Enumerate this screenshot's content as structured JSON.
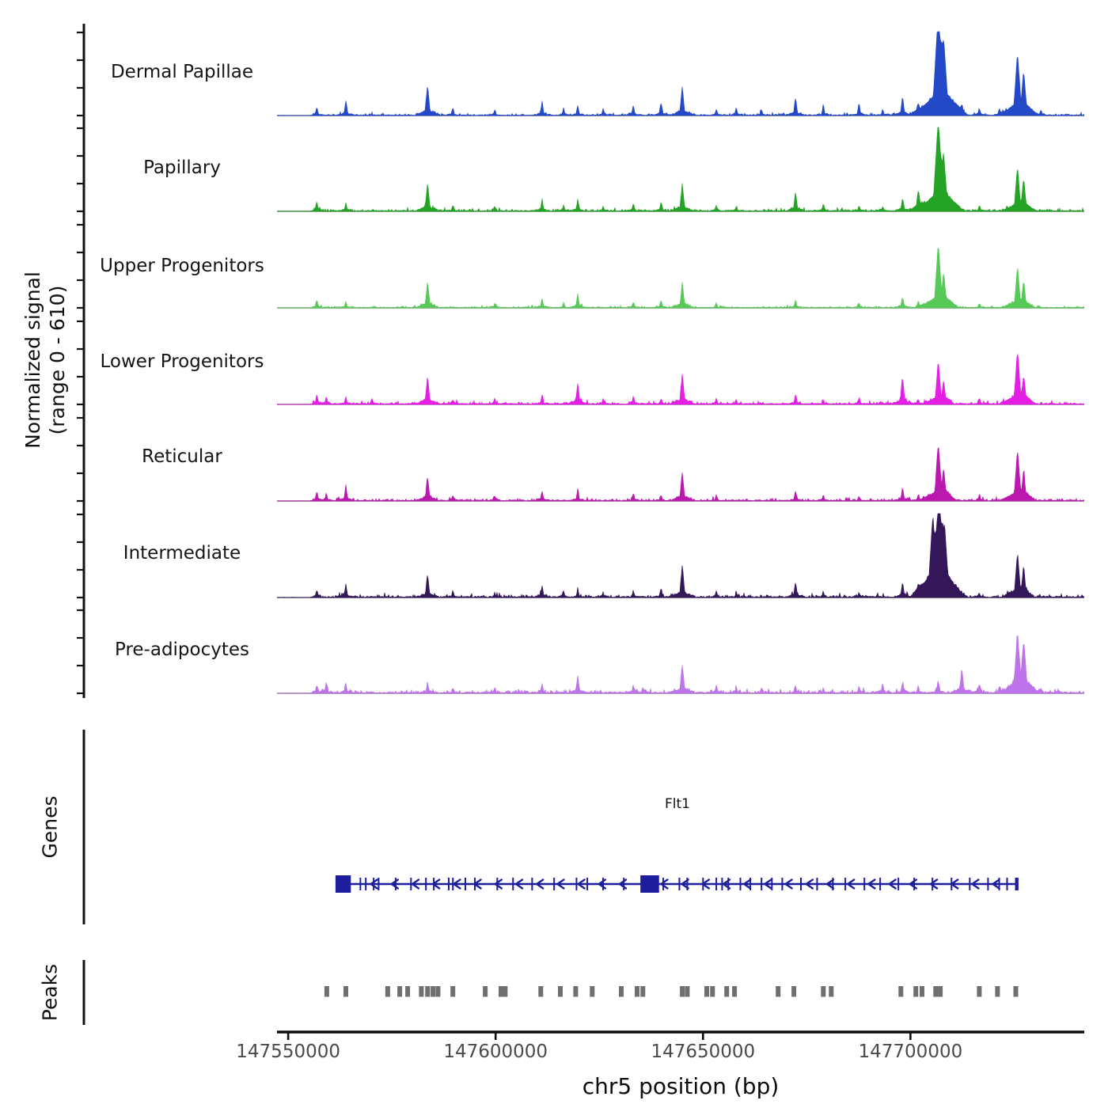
{
  "figure": {
    "background": "#ffffff"
  },
  "signal_axis": {
    "label_line1": "Normalized signal",
    "label_line2": "(range 0 - 610)",
    "y_range": [
      0,
      610
    ]
  },
  "sections": {
    "genes_label": "Genes",
    "peaks_label": "Peaks"
  },
  "xaxis": {
    "label": "chr5 position (bp)",
    "range_bp": [
      147547300,
      147741900
    ],
    "ticks_bp": [
      147550000,
      147600000,
      147650000,
      147700000
    ],
    "tick_labels": [
      "147550000",
      "147600000",
      "147650000",
      "147700000"
    ]
  },
  "gene": {
    "name": "Flt1",
    "strand": "-",
    "color": "#1e1e9c",
    "start_bp": 147561400,
    "end_bp": 147725800,
    "large_exons_bp": [
      [
        147561400,
        147565100
      ],
      [
        147634900,
        147639400
      ]
    ],
    "exons_bp": [
      147567400,
      147568700,
      147570600,
      147571800,
      147575900,
      147579600,
      147583200,
      147585100,
      147588700,
      147589700,
      147592700,
      147595000,
      147600400,
      147604200,
      147608800,
      147614100,
      147619500,
      147622100,
      147625900,
      147630900,
      147640400,
      147644300,
      147646200,
      147650000,
      147653200,
      147654600,
      147656100,
      147659000,
      147661400,
      147664100,
      147666600,
      147669100,
      147673600,
      147677500,
      147681300,
      147684300,
      147688900,
      147692700,
      147697100,
      147700900,
      147705300,
      147709900,
      147714300,
      147718700,
      147721400,
      147723300,
      147725400
    ]
  },
  "peaks_track": {
    "color": "#6f6f6f",
    "width_bp": 1150,
    "positions_bp": [
      147559300,
      147563900,
      147574000,
      147576900,
      147578800,
      147582100,
      147583600,
      147584900,
      147586100,
      147589700,
      147597500,
      147601300,
      147602300,
      147610900,
      147615600,
      147619300,
      147623300,
      147630300,
      147634100,
      147635500,
      147645000,
      147646200,
      147650900,
      147652300,
      147655700,
      147657600,
      147668100,
      147671900,
      147679000,
      147680900,
      147697700,
      147701300,
      147702800,
      147706100,
      147707200,
      147716600,
      147721000,
      147725400
    ]
  },
  "chart_data": {
    "type": "area",
    "subtype": "genome-signal-tracks",
    "title": "",
    "xlabel": "chr5 position (bp)",
    "ylabel": "Normalized signal (range 0 - 610)",
    "x_range_bp": [
      147547300,
      147741900
    ],
    "y_range": [
      0,
      610
    ],
    "grid": false,
    "legend_position": "left-row-labels",
    "tracks": [
      {
        "label": "Dermal Papillae",
        "color": "#2348c8",
        "noise_level": 0.8,
        "peaks": [
          [
            147556900,
            50
          ],
          [
            147563900,
            90
          ],
          [
            147583600,
            195
          ],
          [
            147589700,
            50
          ],
          [
            147599800,
            37
          ],
          [
            147611200,
            85
          ],
          [
            147616400,
            49
          ],
          [
            147619800,
            61
          ],
          [
            147625900,
            37
          ],
          [
            147633200,
            61
          ],
          [
            147639900,
            85
          ],
          [
            147645000,
            183
          ],
          [
            147653200,
            37
          ],
          [
            147658000,
            49
          ],
          [
            147664100,
            37
          ],
          [
            147672300,
            110
          ],
          [
            147679000,
            61
          ],
          [
            147687600,
            73
          ],
          [
            147693300,
            37
          ],
          [
            147698100,
            122
          ],
          [
            147701900,
            49
          ],
          [
            147706700,
            610
          ],
          [
            147708000,
            420
          ],
          [
            147712400,
            37
          ],
          [
            147716600,
            49
          ],
          [
            147721400,
            37
          ],
          [
            147725800,
            378
          ],
          [
            147727300,
            244
          ],
          [
            147731500,
            37
          ]
        ]
      },
      {
        "label": "Papillary",
        "color": "#24a324",
        "noise_level": 0.9,
        "peaks": [
          [
            147556900,
            61
          ],
          [
            147563900,
            49
          ],
          [
            147583600,
            183
          ],
          [
            147589700,
            37
          ],
          [
            147599800,
            30
          ],
          [
            147611200,
            73
          ],
          [
            147616400,
            37
          ],
          [
            147619800,
            73
          ],
          [
            147625900,
            30
          ],
          [
            147633200,
            49
          ],
          [
            147639900,
            61
          ],
          [
            147645000,
            171
          ],
          [
            147653200,
            37
          ],
          [
            147658000,
            30
          ],
          [
            147672300,
            122
          ],
          [
            147679000,
            49
          ],
          [
            147687600,
            37
          ],
          [
            147693300,
            30
          ],
          [
            147698100,
            85
          ],
          [
            147701900,
            110
          ],
          [
            147706700,
            560
          ],
          [
            147708000,
            305
          ],
          [
            147716600,
            37
          ],
          [
            147725800,
            274
          ],
          [
            147727300,
            183
          ]
        ]
      },
      {
        "label": "Upper Progenitors",
        "color": "#57c957",
        "noise_level": 0.7,
        "peaks": [
          [
            147556900,
            49
          ],
          [
            147563900,
            37
          ],
          [
            147583600,
            171
          ],
          [
            147599800,
            30
          ],
          [
            147611200,
            61
          ],
          [
            147616400,
            30
          ],
          [
            147619800,
            85
          ],
          [
            147633200,
            37
          ],
          [
            147639900,
            49
          ],
          [
            147645000,
            159
          ],
          [
            147653200,
            30
          ],
          [
            147672300,
            49
          ],
          [
            147687600,
            30
          ],
          [
            147698100,
            73
          ],
          [
            147701900,
            37
          ],
          [
            147706700,
            397
          ],
          [
            147708000,
            183
          ],
          [
            147716600,
            30
          ],
          [
            147725800,
            256
          ],
          [
            147727300,
            152
          ]
        ]
      },
      {
        "label": "Lower Progenitors",
        "color": "#e41ee4",
        "noise_level": 1.0,
        "peaks": [
          [
            147556900,
            61
          ],
          [
            147559200,
            49
          ],
          [
            147563900,
            49
          ],
          [
            147570200,
            37
          ],
          [
            147583600,
            183
          ],
          [
            147589700,
            30
          ],
          [
            147599800,
            37
          ],
          [
            147611200,
            61
          ],
          [
            147619800,
            134
          ],
          [
            147625900,
            30
          ],
          [
            147633200,
            49
          ],
          [
            147639900,
            37
          ],
          [
            147645000,
            195
          ],
          [
            147653200,
            37
          ],
          [
            147658000,
            30
          ],
          [
            147672300,
            61
          ],
          [
            147679000,
            30
          ],
          [
            147687600,
            37
          ],
          [
            147698100,
            171
          ],
          [
            147701900,
            30
          ],
          [
            147706700,
            274
          ],
          [
            147708000,
            122
          ],
          [
            147716600,
            37
          ],
          [
            147725800,
            336
          ],
          [
            147727300,
            152
          ]
        ]
      },
      {
        "label": "Reticular",
        "color": "#bb18b0",
        "noise_level": 1.0,
        "peaks": [
          [
            147556900,
            61
          ],
          [
            147559200,
            49
          ],
          [
            147563900,
            98
          ],
          [
            147583600,
            159
          ],
          [
            147589700,
            37
          ],
          [
            147599800,
            30
          ],
          [
            147611200,
            61
          ],
          [
            147619800,
            73
          ],
          [
            147633200,
            49
          ],
          [
            147639900,
            37
          ],
          [
            147645000,
            183
          ],
          [
            147653200,
            37
          ],
          [
            147672300,
            61
          ],
          [
            147679000,
            37
          ],
          [
            147687600,
            30
          ],
          [
            147698100,
            85
          ],
          [
            147701900,
            37
          ],
          [
            147706700,
            354
          ],
          [
            147708000,
            171
          ],
          [
            147716600,
            37
          ],
          [
            147725800,
            317
          ],
          [
            147727300,
            159
          ]
        ]
      },
      {
        "label": "Intermediate",
        "color": "#341758",
        "noise_level": 1.1,
        "peaks": [
          [
            147556900,
            49
          ],
          [
            147563900,
            85
          ],
          [
            147583600,
            146
          ],
          [
            147589700,
            37
          ],
          [
            147599800,
            30
          ],
          [
            147611200,
            73
          ],
          [
            147616400,
            37
          ],
          [
            147619800,
            49
          ],
          [
            147625900,
            30
          ],
          [
            147633200,
            37
          ],
          [
            147639900,
            49
          ],
          [
            147645000,
            207
          ],
          [
            147653200,
            37
          ],
          [
            147658000,
            30
          ],
          [
            147672300,
            98
          ],
          [
            147679000,
            37
          ],
          [
            147687600,
            30
          ],
          [
            147698100,
            98
          ],
          [
            147701900,
            37
          ],
          [
            147705400,
            427
          ],
          [
            147706900,
            598
          ],
          [
            147708200,
            366
          ],
          [
            147716600,
            30
          ],
          [
            147725800,
            274
          ],
          [
            147727300,
            171
          ]
        ]
      },
      {
        "label": "Pre-adipocytes",
        "color": "#bd74ea",
        "noise_level": 1.3,
        "peaks": [
          [
            147556900,
            49
          ],
          [
            147559200,
            73
          ],
          [
            147563900,
            61
          ],
          [
            147583600,
            61
          ],
          [
            147589700,
            30
          ],
          [
            147599800,
            37
          ],
          [
            147611200,
            49
          ],
          [
            147619800,
            110
          ],
          [
            147633200,
            49
          ],
          [
            147635500,
            37
          ],
          [
            147645000,
            183
          ],
          [
            147653200,
            49
          ],
          [
            147658000,
            37
          ],
          [
            147664100,
            30
          ],
          [
            147672300,
            49
          ],
          [
            147679000,
            30
          ],
          [
            147687600,
            37
          ],
          [
            147693300,
            49
          ],
          [
            147698100,
            61
          ],
          [
            147701900,
            37
          ],
          [
            147706700,
            73
          ],
          [
            147712400,
            152
          ],
          [
            147716600,
            61
          ],
          [
            147721400,
            37
          ],
          [
            147725800,
            354
          ],
          [
            147727300,
            305
          ],
          [
            147731500,
            30
          ]
        ]
      }
    ]
  }
}
